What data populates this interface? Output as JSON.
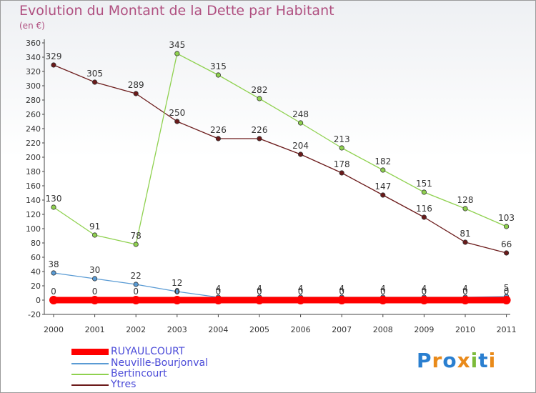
{
  "chart_data": {
    "type": "line",
    "title": "Evolution du Montant de la Dette par Habitant",
    "subtitle": "(en €)",
    "categories": [
      "2000",
      "2001",
      "2002",
      "2003",
      "2004",
      "2005",
      "2006",
      "2007",
      "2008",
      "2009",
      "2010",
      "2011"
    ],
    "ylim": [
      -20,
      360
    ],
    "yticks": [
      -20,
      0,
      20,
      40,
      60,
      80,
      100,
      120,
      140,
      160,
      180,
      200,
      220,
      240,
      260,
      280,
      300,
      320,
      340,
      360
    ],
    "grid": false,
    "legend_position": "bottom-left",
    "series": [
      {
        "name": "RUYAULCOURT",
        "color": "#ff0000",
        "values": [
          0,
          0,
          0,
          0,
          0,
          0,
          0,
          0,
          0,
          0,
          0,
          0
        ],
        "labels": [
          "0",
          "0",
          "0",
          "0",
          "0",
          "0",
          "0",
          "0",
          "0",
          "0",
          "0",
          "0"
        ]
      },
      {
        "name": "Neuville-Bourjonval",
        "color": "#5a9bd4",
        "values": [
          38,
          30,
          22,
          12,
          4,
          4,
          4,
          4,
          4,
          4,
          4,
          5
        ],
        "labels": [
          "38",
          "30",
          "22",
          "12",
          "4",
          "4",
          "4",
          "4",
          "4",
          "4",
          "4",
          "5"
        ]
      },
      {
        "name": "Bertincourt",
        "color": "#8fd14f",
        "values": [
          130,
          91,
          78,
          345,
          315,
          282,
          248,
          213,
          182,
          151,
          128,
          103
        ],
        "labels": [
          "130",
          "91",
          "78",
          "345",
          "315",
          "282",
          "248",
          "213",
          "182",
          "151",
          "128",
          "103"
        ]
      },
      {
        "name": "Ytres",
        "color": "#6b1a1a",
        "values": [
          329,
          305,
          289,
          250,
          226,
          226,
          204,
          178,
          147,
          116,
          81,
          66
        ],
        "labels": [
          "329",
          "305",
          "289",
          "250",
          "226",
          "226",
          "204",
          "178",
          "147",
          "116",
          "81",
          "66"
        ]
      }
    ]
  },
  "logo": {
    "letters": [
      "P",
      "r",
      "o",
      "x",
      "i",
      "t",
      "i"
    ],
    "colors": [
      "#2a7fd0",
      "#e98a1a",
      "#2a7fd0",
      "#e98a1a",
      "#7dbb3a",
      "#2a7fd0",
      "#e98a1a"
    ]
  }
}
